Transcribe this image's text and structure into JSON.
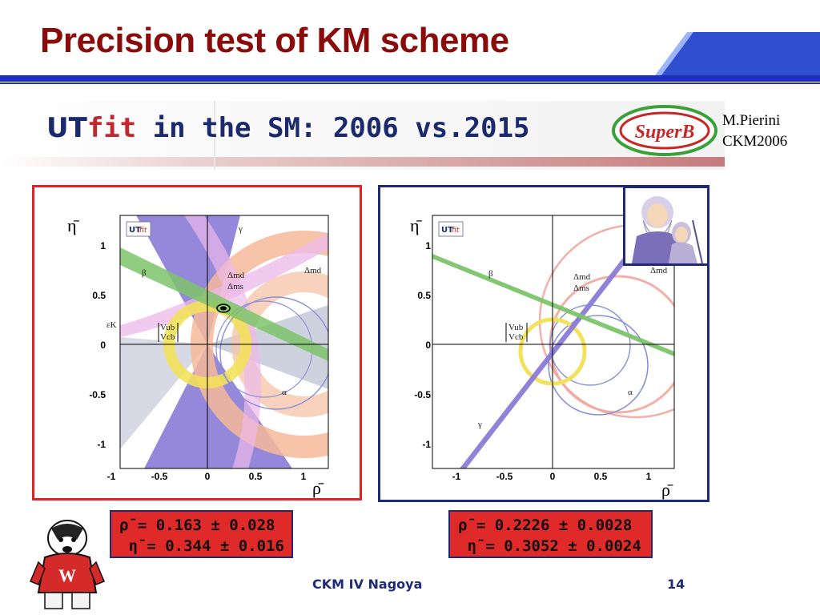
{
  "slide": {
    "title": "Precision test of KM scheme"
  },
  "banner": {
    "ut": "UT",
    "fit": "fit",
    "rest": " in the SM: 2006 vs.2015",
    "logo_text": "SuperB"
  },
  "credit": {
    "author": "M.Pierini",
    "event": "CKM2006"
  },
  "plots": {
    "x_axis_title": "ρ̄",
    "y_axis_title": "η̄",
    "x_ticks": [
      "-1",
      "-0.5",
      "0",
      "0.5",
      "1"
    ],
    "y_ticks": [
      "1",
      "0.5",
      "0",
      "-0.5",
      "-1"
    ],
    "logo_ut": "UT",
    "logo_fit": "fit",
    "left_labels": {
      "gamma": "γ",
      "beta": "β",
      "epsK": "εK",
      "dmd_dms_num": "Δmd",
      "dmd_dms_den": "Δms",
      "dmd": "Δmd",
      "vub_num": "Vub",
      "vub_den": "Vcb",
      "alpha": "α"
    },
    "right_labels": {
      "gamma": "γ",
      "beta": "β",
      "dmd_dms_num": "Δmd",
      "dmd_dms_den": "Δms",
      "dmd": "Δmd",
      "vub_num": "Vub",
      "vub_den": "Vcb",
      "alpha": "α"
    }
  },
  "results": {
    "y2006": {
      "rho": "ρ̄ = 0.163 ± 0.028",
      "eta": " η̄ = 0.344 ± 0.016"
    },
    "y2015": {
      "rho": "ρ̄ = 0.2226 ± 0.0028",
      "eta": " η̄ = 0.3052 ± 0.0024"
    }
  },
  "footer": {
    "venue": "CKM IV Nagoya",
    "page": "14"
  },
  "colors": {
    "title": "#8b0b0b",
    "left_frame": "#e32222",
    "right_frame": "#1e2a78",
    "result_box": "#e02a2a",
    "gamma_band": "#8a7bd6",
    "beta_band": "#7cc46a",
    "dmd_ring": "#f2a98a",
    "vub_ring": "#f0e05a",
    "alpha_band": "#b4b8c8",
    "epsK_band": "#e9b3e6"
  }
}
